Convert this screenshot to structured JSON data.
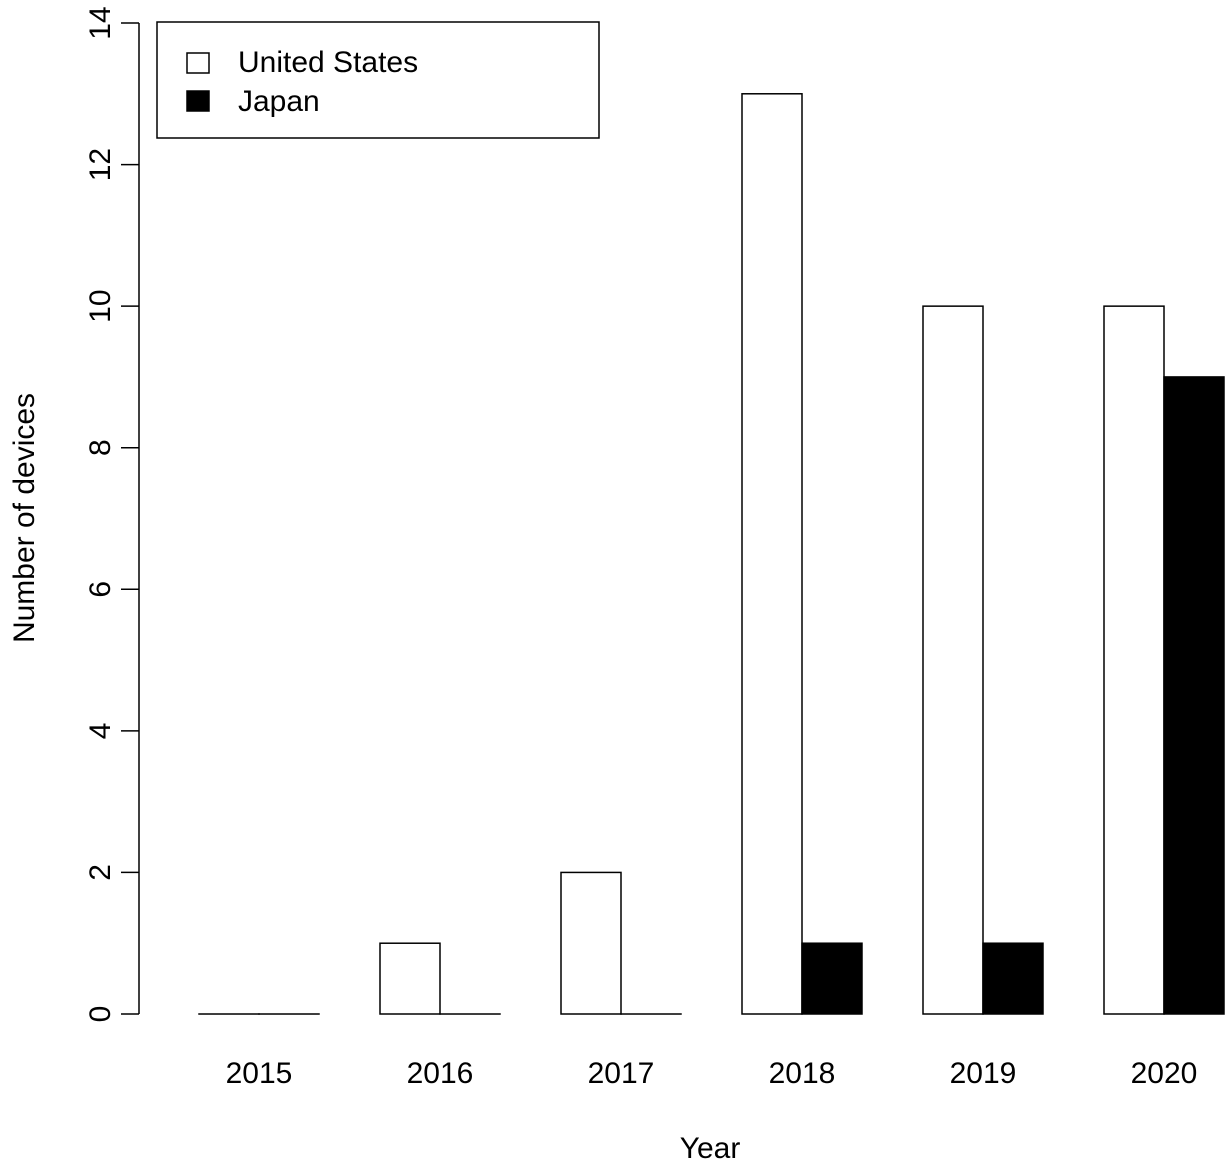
{
  "chart_data": {
    "type": "bar",
    "title": "",
    "xlabel": "Year",
    "ylabel": "Number of devices",
    "categories": [
      "2015",
      "2016",
      "2017",
      "2018",
      "2019",
      "2020"
    ],
    "series": [
      {
        "name": "United States",
        "color": "#ffffff",
        "values": [
          0,
          1,
          2,
          13,
          10,
          10
        ]
      },
      {
        "name": "Japan",
        "color": "#000000",
        "values": [
          0,
          0,
          0,
          1,
          1,
          9
        ]
      }
    ],
    "ylim": [
      0,
      14
    ],
    "yticks": [
      0,
      2,
      4,
      6,
      8,
      10,
      12,
      14
    ],
    "grid": false,
    "legend_position": "top-left",
    "bar_mode": "grouped"
  }
}
